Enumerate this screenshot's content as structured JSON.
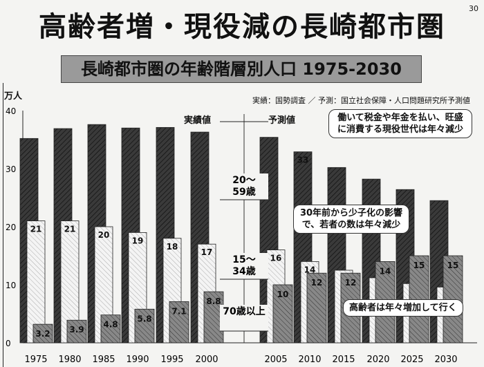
{
  "page_number": "30",
  "title": "高齢者増・現役減の長崎都市圏",
  "subtitle": "長崎都市圏の年齢階層別人口 1975-2030",
  "source": "実績：国勢調査 ／ 予測：国立社会保障・人口問題研究所予測値",
  "notes": {
    "actual": "実績値",
    "forecast": "予測値",
    "working": "働いて税金や年金を払い、旺盛に消費する現役世代は年々減少",
    "young": "30年前から少子化の影響で、若者の数は年々減少",
    "elderly": "高齢者は年々増加して行く"
  },
  "chart_data": {
    "type": "bar",
    "title": "長崎都市圏の年齢階層別人口 1975-2030",
    "ylabel": "万人",
    "ylim": [
      0,
      40
    ],
    "yticks": [
      0,
      10,
      20,
      30,
      40
    ],
    "categories": [
      "1975",
      "1980",
      "1985",
      "1990",
      "1995",
      "2000",
      "2005",
      "2010",
      "2015",
      "2020",
      "2025",
      "2030"
    ],
    "series": [
      {
        "name": "20～59歳",
        "color": "#3a3a3a",
        "values": [
          35.2,
          36.9,
          37.6,
          37.0,
          37.1,
          36.3,
          35.4,
          32.9,
          30.2,
          28.2,
          26.4,
          24.5
        ],
        "labels": [
          "",
          "",
          "",
          "",
          "",
          "",
          "",
          "33",
          "",
          "",
          "",
          ""
        ]
      },
      {
        "name": "15～34歳",
        "color": "#f2f2f2",
        "values": [
          21,
          21,
          20,
          19,
          18,
          17,
          16,
          14,
          12.5,
          11.2,
          10.2,
          9.6
        ],
        "labels": [
          "21",
          "21",
          "20",
          "19",
          "18",
          "17",
          "16",
          "14",
          "",
          "",
          "",
          ""
        ]
      },
      {
        "name": "70歳以上",
        "color": "#777777",
        "values": [
          3.2,
          3.9,
          4.8,
          5.8,
          7.1,
          8.8,
          10,
          12,
          12,
          14,
          15,
          15
        ],
        "labels": [
          "3.2",
          "3.9",
          "4.8",
          "5.8",
          "7.1",
          "8.8",
          "10",
          "12",
          "12",
          "14",
          "15",
          "15"
        ]
      }
    ]
  }
}
